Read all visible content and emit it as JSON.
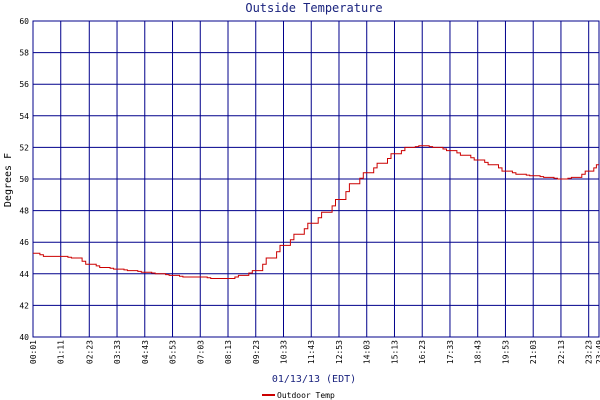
{
  "chart_data": {
    "type": "line",
    "title": "Outside Temperature",
    "xlabel": "01/13/13 (EDT)",
    "ylabel": "Degrees F",
    "ylim": [
      40,
      60
    ],
    "yticks": [
      "40",
      "42",
      "44",
      "46",
      "48",
      "50",
      "52",
      "54",
      "56",
      "58",
      "60"
    ],
    "xticks": [
      "00:01",
      "01:11",
      "02:23",
      "03:33",
      "04:43",
      "05:53",
      "07:03",
      "08:13",
      "09:23",
      "10:33",
      "11:43",
      "12:53",
      "14:03",
      "15:13",
      "16:23",
      "17:33",
      "18:43",
      "19:53",
      "21:03",
      "22:13",
      "23:23",
      "23:49"
    ],
    "grid": true,
    "legend_position": "bottom-left",
    "series": [
      {
        "name": "Outdoor Temp",
        "color": "#cc0000",
        "x": [
          "00:01",
          "00:36",
          "01:11",
          "01:47",
          "02:23",
          "02:58",
          "03:33",
          "04:08",
          "04:43",
          "05:18",
          "05:53",
          "06:28",
          "07:03",
          "07:38",
          "08:13",
          "08:48",
          "09:23",
          "09:58",
          "10:33",
          "11:08",
          "11:43",
          "12:18",
          "12:53",
          "13:28",
          "14:03",
          "14:38",
          "15:13",
          "15:48",
          "16:23",
          "16:58",
          "17:33",
          "18:08",
          "18:43",
          "19:18",
          "19:53",
          "20:28",
          "21:03",
          "21:38",
          "22:13",
          "22:48",
          "23:23",
          "23:49"
        ],
        "values": [
          45.3,
          45.1,
          45.1,
          45.0,
          44.6,
          44.4,
          44.3,
          44.2,
          44.1,
          44.0,
          43.9,
          43.8,
          43.8,
          43.7,
          43.7,
          43.9,
          44.2,
          45.0,
          45.8,
          46.5,
          47.2,
          47.9,
          48.7,
          49.7,
          50.4,
          51.0,
          51.6,
          52.0,
          52.1,
          52.0,
          51.8,
          51.5,
          51.2,
          50.9,
          50.5,
          50.3,
          50.2,
          50.1,
          50.0,
          50.1,
          50.5,
          50.9
        ]
      }
    ]
  }
}
